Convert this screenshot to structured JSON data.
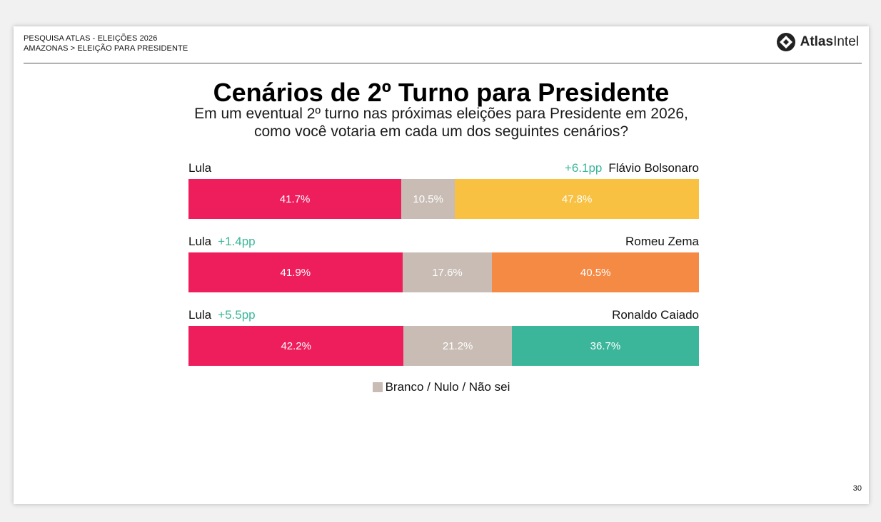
{
  "header": {
    "line1": "PESQUISA ATLAS - ELEIÇÕES 2026",
    "line2": "AMAZONAS > ELEIÇÃO PARA PRESIDENTE"
  },
  "logo": {
    "bold": "Atlas",
    "regular": "Intel",
    "icon": "atlas-logo-icon"
  },
  "title": "Cenários de 2º Turno para Presidente",
  "subtitle": {
    "line1": "Em um eventual 2º turno nas próximas eleições para Presidente em 2026,",
    "line2": "como você votaria em cada um dos seguintes cenários?"
  },
  "colors": {
    "lula": "#ee1e5d",
    "blank": "#c8bcb4",
    "flavio": "#f8c142",
    "zema": "#f58a45",
    "caiado": "#3bb69a",
    "lead": "#3bb69a"
  },
  "chart_data": {
    "type": "bar",
    "orientation": "horizontal-stacked",
    "xlim": [
      0,
      100
    ],
    "scenarios": [
      {
        "left_name": "Lula",
        "left_lead": "",
        "right_name": "Flávio Bolsonaro",
        "right_lead": "+6.1pp",
        "values": [
          41.7,
          10.5,
          47.8
        ],
        "labels": [
          "41.7%",
          "10.5%",
          "47.8%"
        ],
        "right_color": "#f8c142"
      },
      {
        "left_name": "Lula",
        "left_lead": "+1.4pp",
        "right_name": "Romeu Zema",
        "right_lead": "",
        "values": [
          41.9,
          17.6,
          40.5
        ],
        "labels": [
          "41.9%",
          "17.6%",
          "40.5%"
        ],
        "right_color": "#f58a45"
      },
      {
        "left_name": "Lula",
        "left_lead": "+5.5pp",
        "right_name": "Ronaldo Caiado",
        "right_lead": "",
        "values": [
          42.2,
          21.2,
          36.7
        ],
        "labels": [
          "42.2%",
          "21.2%",
          "36.7%"
        ],
        "right_color": "#3bb69a"
      }
    ],
    "legend": {
      "label": "Branco / Nulo / Não sei",
      "position": "bottom-center"
    }
  },
  "page_number": "30"
}
